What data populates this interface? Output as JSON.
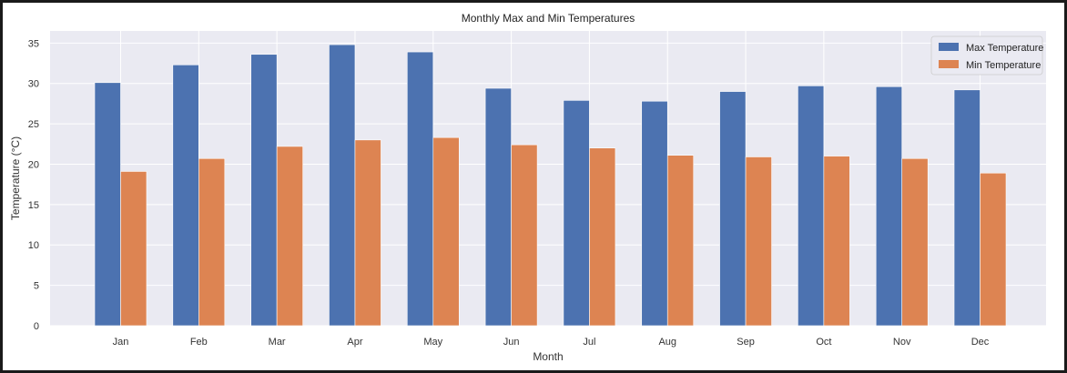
{
  "chart_data": {
    "type": "bar",
    "title": "Monthly Max and Min Temperatures",
    "xlabel": "Month",
    "ylabel": "Temperature (°C)",
    "categories": [
      "Jan",
      "Feb",
      "Mar",
      "Apr",
      "May",
      "Jun",
      "Jul",
      "Aug",
      "Sep",
      "Oct",
      "Nov",
      "Dec"
    ],
    "series": [
      {
        "name": "Max Temperature",
        "color": "#4c72b0",
        "values": [
          30.1,
          32.3,
          33.6,
          34.8,
          33.9,
          29.4,
          27.9,
          27.8,
          29.0,
          29.7,
          29.6,
          29.2
        ]
      },
      {
        "name": "Min Temperature",
        "color": "#dd8452",
        "values": [
          19.1,
          20.7,
          22.2,
          23.0,
          23.3,
          22.4,
          22.0,
          21.1,
          20.9,
          21.0,
          20.7,
          18.9
        ]
      }
    ],
    "ylim": [
      0,
      36.5
    ],
    "yticks": [
      0,
      5,
      10,
      15,
      20,
      25,
      30,
      35
    ],
    "grid": true,
    "legend_position": "top-right",
    "background": "#eaeaf2"
  }
}
